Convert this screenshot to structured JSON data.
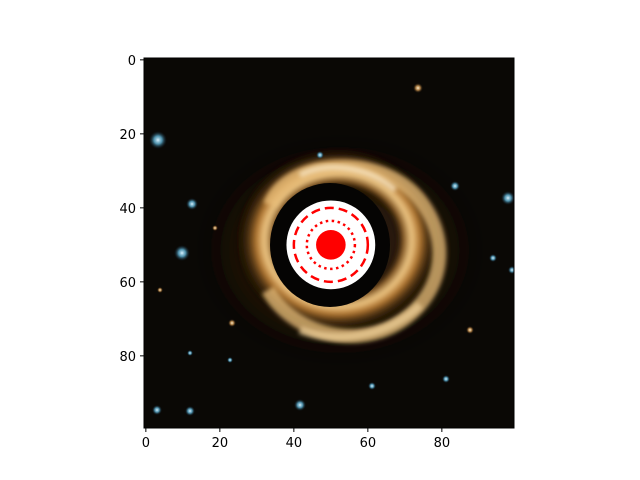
{
  "figure": {
    "background": "#ffffff",
    "image_description": "cropped astronomical image of an Einstein-ring style gravitational lens: orange/golden ring around a dark center, with scattered blue and orange background galaxies"
  },
  "axes": {
    "xlim": [
      -0.5,
      99.5
    ],
    "ylim": [
      99.5,
      -0.5
    ],
    "x_ticks": [
      0,
      20,
      40,
      60,
      80
    ],
    "y_ticks": [
      0,
      20,
      40,
      60,
      80
    ],
    "x_tick_labels": [
      "0",
      "20",
      "40",
      "60",
      "80"
    ],
    "y_tick_labels": [
      "0",
      "20",
      "40",
      "60",
      "80"
    ],
    "tick_color": "#000000",
    "spine_color": "#000000"
  },
  "overlay": {
    "center": [
      50,
      50
    ],
    "color": "#ff0000",
    "mask_color": "#ffffff",
    "mask_radius": 12,
    "marker_radius": 4,
    "dashed_circle_radius": 10,
    "dotted_circle_radius": 6.5
  },
  "colors": {
    "sky": "#0a0805",
    "ring_glow": "#c98a3a",
    "ring_highlight": "#f4dcb0",
    "inner_dark": "#050403",
    "galaxy_blue": "#6fb8d8",
    "galaxy_orange": "#d9a867"
  }
}
